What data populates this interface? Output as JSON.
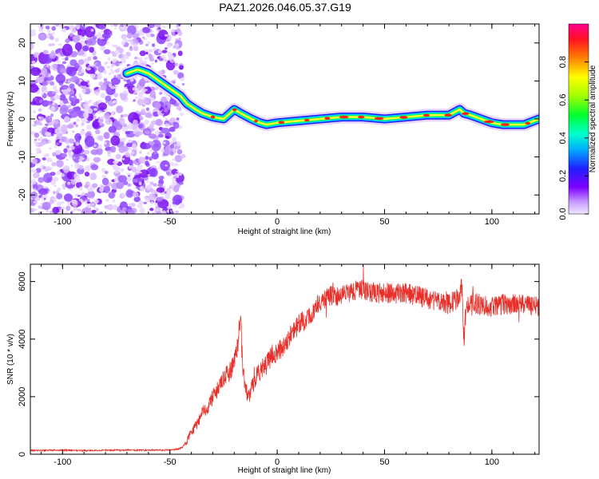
{
  "title": "PAZ1.2026.046.05.37.G19",
  "chart_data": [
    {
      "type": "heatmap",
      "name": "spectrogram",
      "xlabel": "Height of straight line (km)",
      "ylabel": "Frequency (Hz)",
      "xlim": [
        -115,
        122
      ],
      "ylim": [
        -25,
        25
      ],
      "xticks": [
        -100,
        -50,
        0,
        50,
        100
      ],
      "xtick_labels": [
        "-100",
        "-50",
        "0",
        "50",
        "100"
      ],
      "yticks": [
        -20,
        -10,
        0,
        10,
        20
      ],
      "ytick_labels": [
        "-20",
        "-10",
        "0",
        "10",
        "20"
      ],
      "noise_region_x": [
        -115,
        -45
      ],
      "ridge": {
        "x": [
          -70,
          -65,
          -60,
          -55,
          -50,
          -45,
          -42,
          -38,
          -35,
          -30,
          -25,
          -20,
          -17,
          -12,
          -8,
          -5,
          0,
          10,
          20,
          30,
          40,
          50,
          60,
          70,
          75,
          80,
          85,
          87,
          90,
          95,
          100,
          105,
          110,
          115,
          122
        ],
        "y": [
          12,
          13,
          12,
          10,
          8,
          6,
          4,
          2.5,
          1.5,
          0.5,
          0,
          2.5,
          1.5,
          0,
          -1,
          -1.5,
          -1,
          -0.5,
          0,
          0.5,
          0.5,
          0,
          0.5,
          1,
          1,
          1,
          2.5,
          1.5,
          1,
          0,
          -1,
          -1.5,
          -1.5,
          -1.5,
          0
        ]
      },
      "colorbar": {
        "label": "Normalized spectral amplitude",
        "range": [
          0,
          1
        ],
        "ticks": [
          0,
          0.2,
          0.4,
          0.6,
          0.8
        ],
        "tick_labels": [
          "0.0",
          "0.2",
          "0.4",
          "0.6",
          "0.8"
        ]
      }
    },
    {
      "type": "line",
      "name": "snr",
      "xlabel": "Height of straight line (km)",
      "ylabel": "SNR (10 * v/v)",
      "xlim": [
        -115,
        122
      ],
      "ylim": [
        0,
        6600
      ],
      "xticks": [
        -100,
        -50,
        0,
        50,
        100
      ],
      "xtick_labels": [
        "-100",
        "-50",
        "0",
        "50",
        "100"
      ],
      "yticks": [
        0,
        2000,
        4000,
        6000
      ],
      "ytick_labels": [
        "0",
        "2000",
        "4000",
        "6000"
      ],
      "color": "#e8302a",
      "series": [
        {
          "name": "SNR",
          "x": [
            -115,
            -100,
            -90,
            -80,
            -70,
            -60,
            -50,
            -46,
            -44,
            -42,
            -40,
            -38,
            -35,
            -32,
            -30,
            -28,
            -25,
            -22,
            -20,
            -18,
            -17,
            -16,
            -15,
            -13,
            -10,
            -8,
            -5,
            -2,
            0,
            5,
            10,
            15,
            20,
            25,
            30,
            35,
            40,
            45,
            50,
            55,
            60,
            65,
            70,
            75,
            80,
            84,
            86,
            87,
            88,
            90,
            95,
            100,
            105,
            110,
            115,
            122
          ],
          "values": [
            130,
            140,
            130,
            140,
            145,
            140,
            150,
            180,
            250,
            500,
            800,
            1000,
            1400,
            1700,
            2000,
            2200,
            2600,
            2900,
            3200,
            4000,
            4700,
            3000,
            2300,
            2000,
            2700,
            2900,
            3100,
            3500,
            3500,
            4000,
            4500,
            4800,
            5300,
            5500,
            5500,
            5700,
            5700,
            5600,
            5600,
            5600,
            5600,
            5500,
            5400,
            5300,
            5200,
            5400,
            5800,
            4000,
            5100,
            5300,
            5200,
            5100,
            5200,
            5200,
            5200,
            5100
          ],
          "noise_amplitude": 300
        }
      ]
    }
  ]
}
